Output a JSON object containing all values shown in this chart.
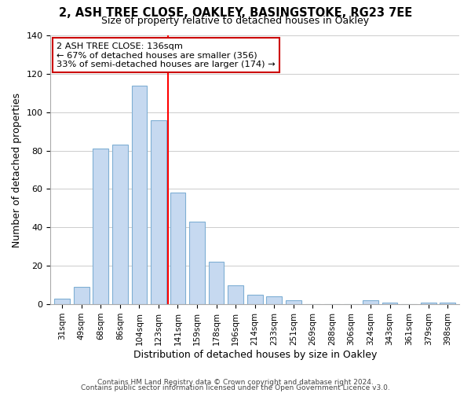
{
  "title_line1": "2, ASH TREE CLOSE, OAKLEY, BASINGSTOKE, RG23 7EE",
  "title_line2": "Size of property relative to detached houses in Oakley",
  "xlabel": "Distribution of detached houses by size in Oakley",
  "ylabel": "Number of detached properties",
  "bar_labels": [
    "31sqm",
    "49sqm",
    "68sqm",
    "86sqm",
    "104sqm",
    "123sqm",
    "141sqm",
    "159sqm",
    "178sqm",
    "196sqm",
    "214sqm",
    "233sqm",
    "251sqm",
    "269sqm",
    "288sqm",
    "306sqm",
    "324sqm",
    "343sqm",
    "361sqm",
    "379sqm",
    "398sqm"
  ],
  "bar_values": [
    3,
    9,
    81,
    83,
    114,
    96,
    58,
    43,
    22,
    10,
    5,
    4,
    2,
    0,
    0,
    0,
    2,
    1,
    0,
    1,
    1
  ],
  "bar_color": "#c6d9f0",
  "bar_edge_color": "#7fafd4",
  "vline_x": 6.0,
  "vline_color": "red",
  "annotation_title": "2 ASH TREE CLOSE: 136sqm",
  "annotation_line1": "← 67% of detached houses are smaller (356)",
  "annotation_line2": "33% of semi-detached houses are larger (174) →",
  "ylim": [
    0,
    140
  ],
  "yticks": [
    0,
    20,
    40,
    60,
    80,
    100,
    120,
    140
  ],
  "footer1": "Contains HM Land Registry data © Crown copyright and database right 2024.",
  "footer2": "Contains public sector information licensed under the Open Government Licence v3.0."
}
